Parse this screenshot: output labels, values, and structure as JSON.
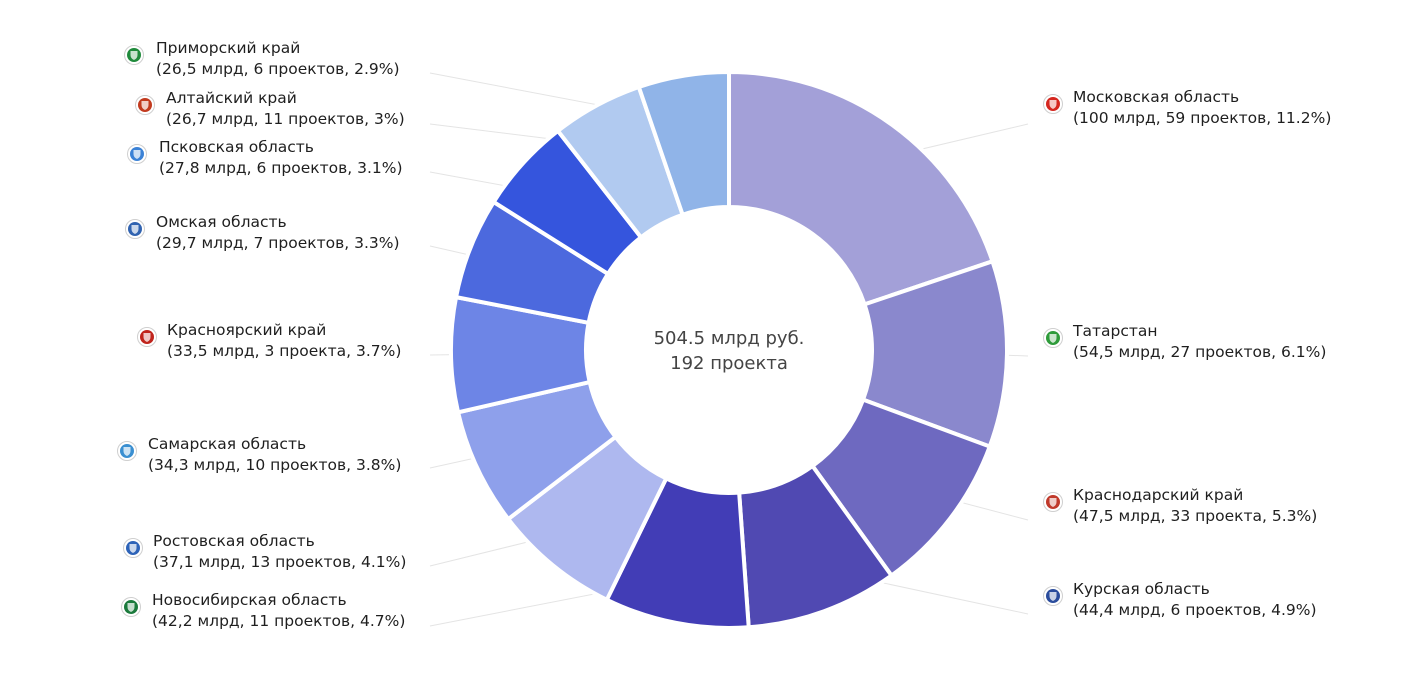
{
  "chart_data": {
    "type": "donut",
    "center": {
      "line1": "504.5 млрд руб.",
      "line2": "192 проекта"
    },
    "series": [
      {
        "name": "Московская область",
        "value": 100,
        "label": "(100 млрд, 59 проектов, 11.2%)",
        "color": "#a3a0d8",
        "icon": "moscow-oblast-emblem-icon",
        "icon_color": "#d5261f"
      },
      {
        "name": "Татарстан",
        "value": 54.5,
        "label": "(54,5 млрд, 27 проектов, 6.1%)",
        "color": "#8a88cd",
        "icon": "tatarstan-emblem-icon",
        "icon_color": "#2e9b3a"
      },
      {
        "name": "Краснодарский край",
        "value": 47.5,
        "label": "(47,5 млрд, 33 проекта, 5.3%)",
        "color": "#6e69c0",
        "icon": "krasnodar-emblem-icon",
        "icon_color": "#c0392b"
      },
      {
        "name": "Курская область",
        "value": 44.4,
        "label": "(44,4 млрд, 6 проектов, 4.9%)",
        "color": "#5049b2",
        "icon": "kursk-emblem-icon",
        "icon_color": "#2a4c9c"
      },
      {
        "name": "Новосибирская область",
        "value": 42.2,
        "label": "(42,2 млрд, 11 проектов, 4.7%)",
        "color": "#423db6",
        "icon": "novosibirsk-emblem-icon",
        "icon_color": "#1b7a3c"
      },
      {
        "name": "Ростовская область",
        "value": 37.1,
        "label": "(37,1 млрд, 13 проектов, 4.1%)",
        "color": "#aeb8ef",
        "icon": "rostov-emblem-icon",
        "icon_color": "#2d63b8"
      },
      {
        "name": "Самарская область",
        "value": 34.3,
        "label": "(34,3 млрд, 10 проектов, 3.8%)",
        "color": "#8ea0eb",
        "icon": "samara-emblem-icon",
        "icon_color": "#3a8fd1"
      },
      {
        "name": "Красноярский край",
        "value": 33.5,
        "label": "(33,5 млрд, 3 проекта, 3.7%)",
        "color": "#6d85e6",
        "icon": "krasnoyarsk-emblem-icon",
        "icon_color": "#c0241c"
      },
      {
        "name": "Омская область",
        "value": 29.7,
        "label": "(29,7 млрд, 7 проектов, 3.3%)",
        "color": "#4c69de",
        "icon": "omsk-emblem-icon",
        "icon_color": "#3163b0"
      },
      {
        "name": "Псковская область",
        "value": 27.8,
        "label": "(27,8 млрд, 6 проектов, 3.1%)",
        "color": "#3555dd",
        "icon": "pskov-emblem-icon",
        "icon_color": "#3b82d6"
      },
      {
        "name": "Алтайский край",
        "value": 26.7,
        "label": "(26,7 млрд, 11 проектов, 3%)",
        "color": "#b1caf0",
        "icon": "altai-emblem-icon",
        "icon_color": "#c23a1e"
      },
      {
        "name": "Приморский край",
        "value": 26.5,
        "label": "(26,5 млрд, 6 проектов, 2.9%)",
        "color": "#90b4e8",
        "icon": "primorye-emblem-icon",
        "icon_color": "#1f8a3b"
      }
    ]
  }
}
